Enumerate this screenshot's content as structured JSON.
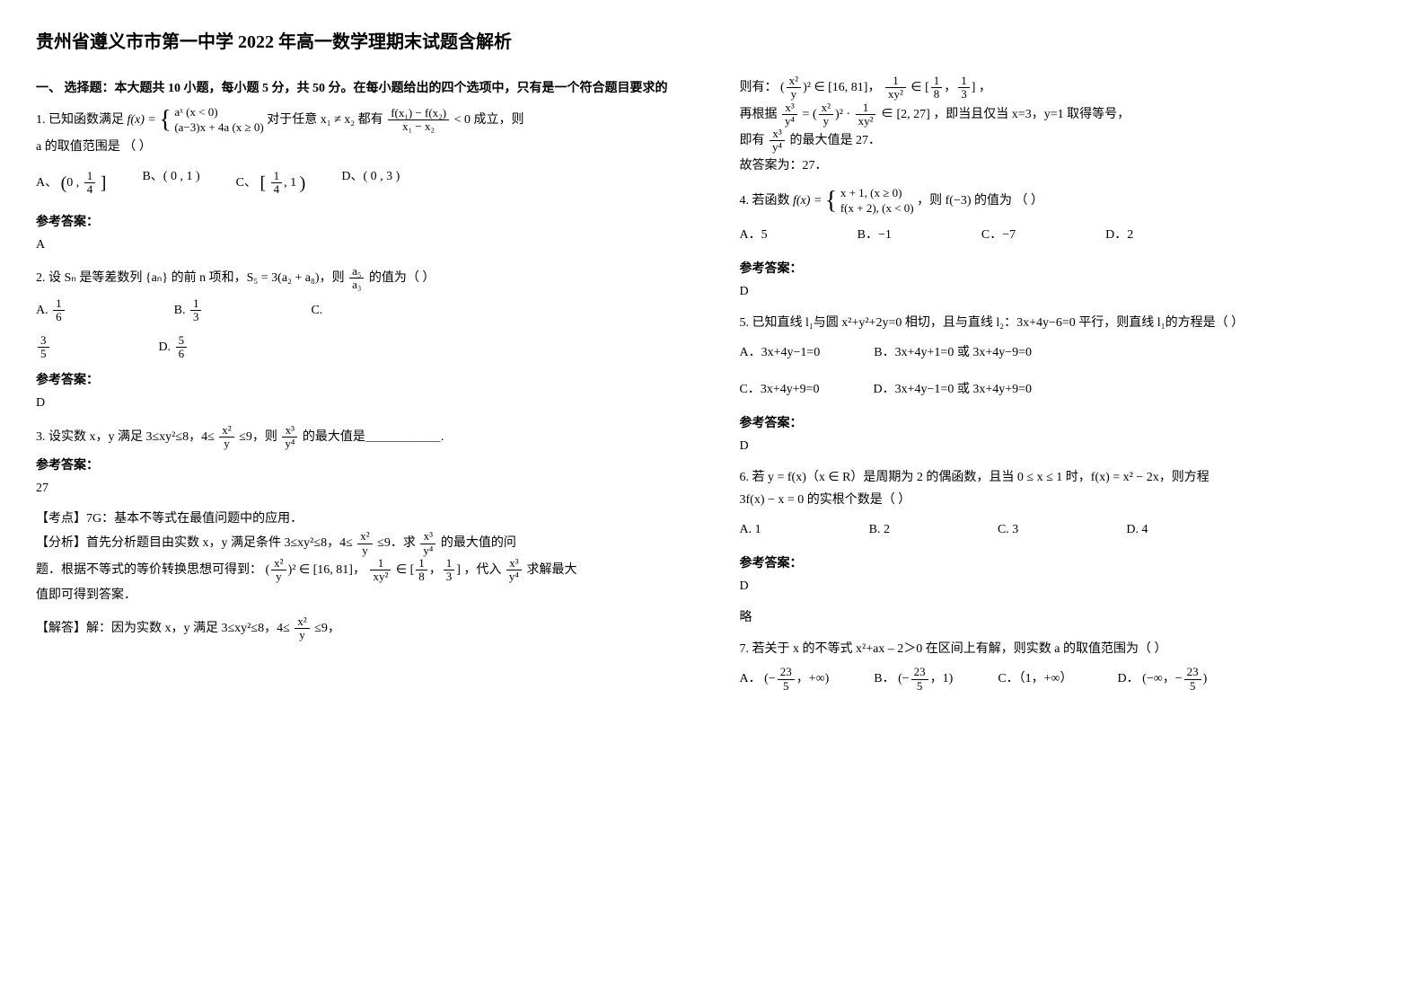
{
  "title": "贵州省遵义市市第一中学 2022 年高一数学理期末试题含解析",
  "section1": "一、 选择题：本大题共 10 小题，每小题 5 分，共 50 分。在每小题给出的四个选项中，只有是一个符合题目要求的",
  "q1": {
    "stem_a": "1. 已知函数满足 ",
    "stem_b": " 对于任意 x₁ ≠ x₂ 都有 ",
    "stem_c": " 成立，则",
    "stem_d": "a 的取值范围是  （        ）",
    "piece_top": "aˣ              (x < 0)",
    "piece_bot": "(a−3)x + 4a   (x ≥ 0)",
    "ineq_num": "f(x₁) − f(x₂)",
    "ineq_den": "x₁ − x₂",
    "lt0": " < 0",
    "optA_l": "A、",
    "optB": "B、( 0 , 1 )",
    "optC_l": "C、",
    "optD": "D、( 0 , 3 )",
    "ans_label": "参考答案：",
    "ans": "A"
  },
  "q2": {
    "stem_a": "2. 设 Sₙ 是等差数列 {aₙ} 的前 n 项和，S₅ = 3(a₂ + a₈)，则 ",
    "stem_b": " 的值为（        ）",
    "frac_num": "a₅",
    "frac_den": "a₃",
    "optA": "A.",
    "optB": "B.",
    "optC": "C.",
    "optD": "D.",
    "vA_n": "1",
    "vA_d": "6",
    "vB_n": "1",
    "vB_d": "3",
    "vC_n": "3",
    "vC_d": "5",
    "vD_n": "5",
    "vD_d": "6",
    "ans_label": "参考答案：",
    "ans": "D"
  },
  "q3": {
    "stem_a": "3. 设实数 x，y 满足 3≤xy²≤8，4≤ ",
    "stem_b": " ≤9，则 ",
    "stem_c": " 的最大值是＿＿＿＿＿＿.",
    "f1_n": "x²",
    "f1_d": "y",
    "f2_n": "x³",
    "f2_d": "y⁴",
    "ans_label": "参考答案：",
    "ans": "27",
    "kd": "【考点】7G：基本不等式在最值问题中的应用．",
    "fx_a": "【分析】首先分析题目由实数 x，y 满足条件 3≤xy²≤8，4≤ ",
    "fx_b": "   ≤9．求 ",
    "fx_c": "   的最大值的问",
    "fx_d": "题．根据不等式的等价转换思想可得到：",
    "fx_e": "∈ [16,  81]",
    "fx_f": "∈ [",
    "fx_g": "]",
    "fx_h": "，代入",
    "fx_i": "求解最大",
    "fx_j": "值即可得到答案．",
    "jd_a": "【解答】解：因为实数 x，y 满足 3≤xy²≤8，4≤ ",
    "jd_b": " ≤9，",
    "r_a": "则有：",
    "r_b": "∈ [16,  81]",
    "r_c": "∈ [",
    "r_d": "]",
    "r_e": "，",
    "r_f": "再根据",
    "r_g": "∈ [2,  27]",
    "r_h": "，即当且仅当 x=3，y=1 取得等号，",
    "r_i": "即有",
    "r_j": "的最大值是 27．",
    "r_k": "故答案为：27．",
    "sq": "²",
    "lp": "(",
    "rp": ")",
    "c18n": "1",
    "c18d": "8",
    "c13n": "1",
    "c13d": "3",
    "xy2n": "1",
    "xy2d": "xy²"
  },
  "q4": {
    "stem_a": "4. 若函数 ",
    "stem_b": "，则 f(−3) 的值为    （      ）",
    "piece_top": "x + 1, (x ≥ 0)",
    "piece_bot": "f(x + 2), (x < 0)",
    "optA": "A．5",
    "optB": "B．−1",
    "optC": "C．−7",
    "optD": "D．2",
    "ans_label": "参考答案：",
    "ans": "D"
  },
  "q5": {
    "stem": "5. 已知直线 l₁与圆 x²+y²+2y=0 相切，且与直线 l₂：3x+4y−6=0 平行，则直线 l₁的方程是（     ）",
    "optA": "A．3x+4y−1=0",
    "optB": "B．3x+4y+1=0 或 3x+4y−9=0",
    "optC": "C．3x+4y+9=0",
    "optD": "D．3x+4y−1=0 或 3x+4y+9=0",
    "ans_label": "参考答案：",
    "ans": "D"
  },
  "q6": {
    "stem_a": "6. 若 y = f(x)（x ∈ R）是周期为 2 的偶函数，且当 0 ≤ x ≤ 1 时，f(x) = x² − 2x，则方程",
    "stem_b": "3f(x) − x = 0 的实根个数是（     ）",
    "optA": "A. 1",
    "optB": "B. 2",
    "optC": "C. 3",
    "optD": "D. 4",
    "ans_label": "参考答案：",
    "ans": "D",
    "extra": "略"
  },
  "q7": {
    "stem": "7. 若关于 x 的不等式 x²+ax – 2＞0 在区间上有解，则实数 a 的取值范围为（     ）",
    "optA_l": "A．",
    "optB_l": "B．",
    "optC": "C．（1，+∞）",
    "optD_l": "D．",
    "vn": "23",
    "vd": "5",
    "pinf": "+∞)",
    "one": "1)",
    "ninf": "(−∞，",
    "lpar": "(−",
    "comma": "，"
  }
}
